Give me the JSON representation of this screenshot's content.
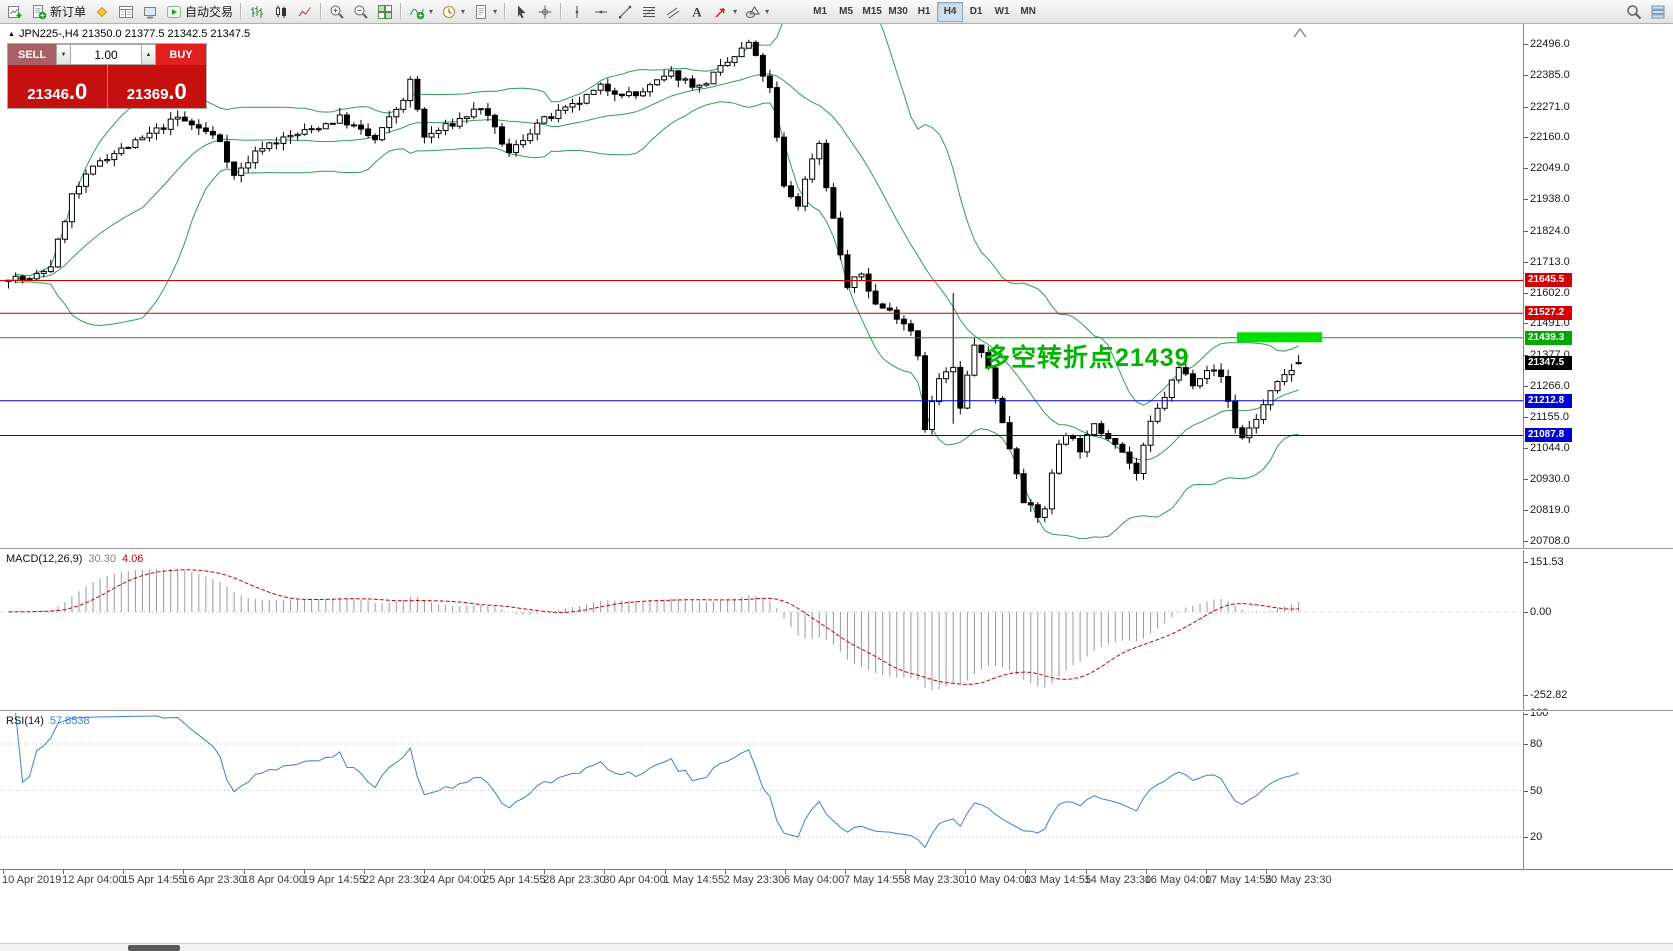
{
  "app": {
    "toolbar_bg": "#ededed",
    "workspace_bg": "#ffffff",
    "accent_red": "#d20000",
    "accent_green": "#00a800",
    "accent_blue": "#0000d2",
    "sell_button_color": "#a96064",
    "buy_button_color": "#e21f1f",
    "price_box_color": "#c60f0f"
  },
  "toolbar": {
    "items": [
      {
        "icon": "new-chart-icon"
      },
      {
        "icon": "new-order-icon",
        "label": "新订单"
      },
      {
        "icon": "market-watch-icon"
      },
      {
        "icon": "data-window-icon"
      },
      {
        "icon": "terminal-icon"
      },
      {
        "icon": "autotrade-icon",
        "label": "自动交易"
      },
      {
        "sep": true
      },
      {
        "icon": "bar-chart-icon"
      },
      {
        "icon": "candlestick-icon"
      },
      {
        "icon": "line-chart-icon"
      },
      {
        "sep": true
      },
      {
        "icon": "zoom-in-icon"
      },
      {
        "icon": "zoom-out-icon"
      },
      {
        "icon": "tile-windows-icon"
      },
      {
        "sep": true
      },
      {
        "icon": "indicators-icon",
        "dropdown": true
      },
      {
        "icon": "periods-icon",
        "dropdown": true
      },
      {
        "icon": "templates-icon",
        "dropdown": true
      },
      {
        "sep": true
      },
      {
        "icon": "cursor-icon"
      },
      {
        "icon": "crosshair-icon"
      },
      {
        "sep": true
      },
      {
        "icon": "vertical-line-icon"
      },
      {
        "icon": "horizontal-line-icon"
      },
      {
        "icon": "trendline-icon"
      },
      {
        "icon": "fibonacci-icon"
      },
      {
        "icon": "channels-icon"
      },
      {
        "icon": "text-icon"
      },
      {
        "icon": "arrows-icon",
        "dropdown": true
      },
      {
        "icon": "objects-icon",
        "dropdown": true
      }
    ],
    "timeframes": [
      "M1",
      "M5",
      "M15",
      "M30",
      "H1",
      "H4",
      "D1",
      "W1",
      "MN"
    ],
    "active_timeframe": "H4",
    "right_items": [
      {
        "icon": "search-icon"
      },
      {
        "icon": "chart-list-icon"
      }
    ]
  },
  "chart": {
    "direction_glyph": "▲",
    "quote_text": "JPN225-,H4 21350.0 21377.5 21342.5 21347.5",
    "annotation": {
      "text": "多空转折点21439",
      "color": "#00b400"
    }
  },
  "trade": {
    "sell_label": "SELL",
    "buy_label": "BUY",
    "volume": "1.00",
    "volume_down_glyph": "▼",
    "volume_up_glyph": "▲",
    "sell_price_main": "21346",
    "sell_price_frac": ".0",
    "buy_price_main": "21369",
    "buy_price_frac": ".0"
  },
  "indicators": {
    "macd": {
      "name": "MACD(12,26,9)",
      "main": "30.30",
      "signal": "4.06"
    },
    "rsi": {
      "name": "RSI(14)",
      "value": "57.8538"
    }
  },
  "chart_data": {
    "type": "candlestick",
    "symbol": "JPN225-",
    "timeframe": "H4",
    "last_quote": {
      "open": 21350.0,
      "high": 21377.5,
      "low": 21342.5,
      "close": 21347.5
    },
    "bid": 21346.0,
    "ask": 21369.0,
    "y_ticks": [
      22496.0,
      22385.0,
      22271.0,
      22160.0,
      22049.0,
      21938.0,
      21824.0,
      21713.0,
      21602.0,
      21491.0,
      21377.0,
      21266.0,
      21155.0,
      21044.0,
      20930.0,
      20819.0,
      20708.0
    ],
    "levels": [
      {
        "price": 21645.5,
        "color": "#d20000",
        "type": "resistance-line"
      },
      {
        "price": 21527.2,
        "color": "#d20000",
        "type": "resistance-line"
      },
      {
        "price": 21439.3,
        "color": "#00a800",
        "type": "pivot-line"
      },
      {
        "price": 21347.5,
        "color": "#000000",
        "type": "current-price"
      },
      {
        "price": 21212.8,
        "color": "#0000d2",
        "type": "support-line"
      },
      {
        "price": 21087.8,
        "color": "#0000d2",
        "type": "support-line"
      }
    ],
    "highlight_zone": {
      "price": 21441,
      "x_from": 1237,
      "x_to": 1322,
      "color": "#00e000"
    },
    "candles_count": 184,
    "price_path": [
      [
        0,
        21660
      ],
      [
        3,
        21645
      ],
      [
        6,
        21700
      ],
      [
        9,
        21950
      ],
      [
        13,
        22080
      ],
      [
        18,
        22140
      ],
      [
        24,
        22230
      ],
      [
        28,
        22180
      ],
      [
        30,
        22150
      ],
      [
        32,
        22020
      ],
      [
        36,
        22130
      ],
      [
        42,
        22180
      ],
      [
        47,
        22230
      ],
      [
        52,
        22150
      ],
      [
        56,
        22300
      ],
      [
        57,
        22360
      ],
      [
        59,
        22160
      ],
      [
        63,
        22210
      ],
      [
        67,
        22270
      ],
      [
        71,
        22100
      ],
      [
        75,
        22210
      ],
      [
        80,
        22270
      ],
      [
        84,
        22340
      ],
      [
        89,
        22310
      ],
      [
        94,
        22390
      ],
      [
        98,
        22340
      ],
      [
        103,
        22450
      ],
      [
        105,
        22500
      ],
      [
        108,
        22330
      ],
      [
        110,
        21980
      ],
      [
        112,
        21920
      ],
      [
        114,
        22090
      ],
      [
        115,
        22140
      ],
      [
        116,
        21990
      ],
      [
        118,
        21740
      ],
      [
        119,
        21620
      ],
      [
        121,
        21670
      ],
      [
        123,
        21560
      ],
      [
        126,
        21520
      ],
      [
        128,
        21470
      ],
      [
        129,
        21380
      ],
      [
        130,
        21120
      ],
      [
        132,
        21290
      ],
      [
        134,
        21330
      ],
      [
        135,
        21180
      ],
      [
        137,
        21420
      ],
      [
        139,
        21330
      ],
      [
        141,
        21130
      ],
      [
        143,
        20960
      ],
      [
        144,
        20860
      ],
      [
        146,
        20790
      ],
      [
        147,
        20830
      ],
      [
        149,
        21060
      ],
      [
        150,
        21100
      ],
      [
        152,
        21040
      ],
      [
        154,
        21120
      ],
      [
        157,
        21070
      ],
      [
        159,
        20990
      ],
      [
        160,
        20950
      ],
      [
        162,
        21130
      ],
      [
        164,
        21230
      ],
      [
        166,
        21330
      ],
      [
        168,
        21280
      ],
      [
        170,
        21330
      ],
      [
        172,
        21300
      ],
      [
        174,
        21120
      ],
      [
        175,
        21080
      ],
      [
        177,
        21150
      ],
      [
        179,
        21240
      ],
      [
        181,
        21300
      ],
      [
        183,
        21347.5
      ]
    ],
    "wick_overrides": [
      [
        134,
        21600,
        21130
      ]
    ],
    "bollinger": {
      "period": 20,
      "deviation": 2,
      "color": "#2e9e5b"
    },
    "macd": {
      "fast": 12,
      "slow": 26,
      "signal": 9,
      "value": 30.3,
      "signal_value": 4.06,
      "scale_ticks": [
        151.53,
        0.0,
        -252.82
      ],
      "histogram_color": "#9a9a9a",
      "signal_color": "#cc0000"
    },
    "rsi": {
      "period": 14,
      "value": 57.8538,
      "scale_ticks": [
        100,
        80,
        50,
        20
      ],
      "levels": [
        80,
        50,
        20
      ],
      "color": "#3e7fd4"
    },
    "time_labels": [
      "10 Apr 2019",
      "12 Apr 04:00",
      "15 Apr 14:55",
      "16 Apr 23:30",
      "18 Apr 04:00",
      "19 Apr 14:55",
      "22 Apr 23:30",
      "24 Apr 04:00",
      "25 Apr 14:55",
      "28 Apr 23:30",
      "30 Apr 04:00",
      "1 May 14:55",
      "2 May 23:30",
      "6 May 04:00",
      "7 May 14:55",
      "8 May 23:30",
      "10 May 04:00",
      "13 May 14:55",
      "14 May 23:30",
      "16 May 04:00",
      "17 May 14:55",
      "20 May 23:30"
    ],
    "candle_colors": {
      "up": "#ffffff",
      "down": "#000000",
      "outline": "#000000"
    }
  }
}
